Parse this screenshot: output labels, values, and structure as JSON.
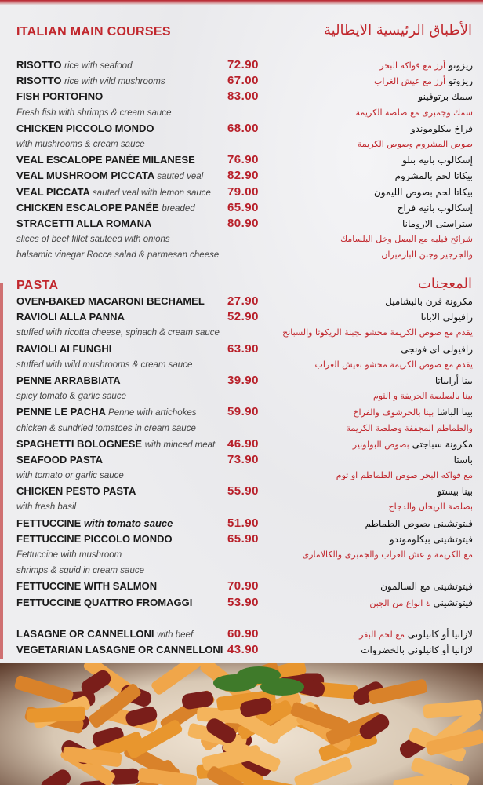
{
  "sections": [
    {
      "title_en": "ITALIAN MAIN COURSES",
      "title_ar": "الأطباق الرئيسية الايطالية",
      "lines": [
        {
          "en": "RISOTTO",
          "en_note": "rice with seafood",
          "price": "72.90",
          "ar": "ريزوتو",
          "ar_note": "أرز مع فواكه البحر"
        },
        {
          "en": "RISOTTO",
          "en_note": "rice with wild mushrooms",
          "price": "67.00",
          "ar": "ريزوتو",
          "ar_note": "أرز مع عيش الغراب"
        },
        {
          "en": "FISH PORTOFINO",
          "price": "83.00",
          "ar": "سمك برتوفينو"
        },
        {
          "desc_en": "Fresh fish with shrimps & cream sauce",
          "desc_ar": "سمك وجمبرى مع صلصة الكريمة"
        },
        {
          "en": "CHICKEN PICCOLO MONDO",
          "price": "68.00",
          "ar": "فراخ بيكلوموندو"
        },
        {
          "desc_en": "with mushrooms & cream sauce",
          "desc_ar": "صوص المشروم وصوص الكريمة"
        },
        {
          "en": "VEAL ESCALOPE PANÉE MILANESE",
          "price": "76.90",
          "ar": "إسكالوب بانيه بتلو"
        },
        {
          "en": "VEAL MUSHROOM PICCATA",
          "en_note": "sauted veal",
          "price": "82.90",
          "ar": "بيكاتا لحم بالمشروم"
        },
        {
          "en": "VEAL PICCATA",
          "en_note": "sauted veal with lemon sauce",
          "price": "79.00",
          "ar": "بيكاتا لحم بصوص الليمون"
        },
        {
          "en": "CHICKEN ESCALOPE PANÉE",
          "en_note": "breaded",
          "price": "65.90",
          "ar": "إسكالوب بانيه فراخ"
        },
        {
          "en": "STRACETTI ALLA ROMANA",
          "price": "80.90",
          "ar": "ستراستى الارومانا"
        },
        {
          "desc_en": "slices of beef fillet sauteed with onions",
          "desc_ar": "شرائح فيليه مع البصل وخل البلسامك"
        },
        {
          "desc_en": "balsamic vinegar Rocca salad & parmesan cheese",
          "desc_ar": "والجرجير وجبن البارميزان"
        }
      ]
    },
    {
      "title_en": "PASTA",
      "title_ar": "المعجنات",
      "lines": [
        {
          "en": "OVEN-BAKED MACARONI BECHAMEL",
          "price": "27.90",
          "ar": "مكرونة فرن بالبشاميل"
        },
        {
          "en": "RAVIOLI ALLA PANNA",
          "price": "52.90",
          "ar": "رافيولى الابانا"
        },
        {
          "desc_en": "stuffed with ricotta cheese, spinach & cream sauce",
          "desc_ar": "يقدم مع صوص الكريمة محشو بجبنة الريكوتا والسبانخ"
        },
        {
          "en": "RAVIOLI AI FUNGHI",
          "price": "63.90",
          "ar": "رافيولى اى فونجى"
        },
        {
          "desc_en": "stuffed with wild mushrooms & cream sauce",
          "desc_ar": "يقدم مع صوص الكريمة محشو بعيش الغراب"
        },
        {
          "en": "PENNE ARRABBIATA",
          "price": "39.90",
          "ar": "بينا أرابياتا"
        },
        {
          "desc_en": "spicy tomato & garlic sauce",
          "desc_ar": "بينا بالصلصة الحريفة و الثوم"
        },
        {
          "en": "PENNE LE PACHA",
          "en_note": "Penne with artichokes",
          "price": "59.90",
          "ar": "بينا الباشا",
          "ar_note": "بينا بالخرشوف والفراخ"
        },
        {
          "desc_en": "chicken & sundried tomatoes in cream sauce",
          "desc_ar": "والطماطم المجففة وصلصة الكريمة"
        },
        {
          "en": "SPAGHETTI BOLOGNESE",
          "en_note": "with minced meat",
          "price": "46.90",
          "ar": "مكرونة سباجتى",
          "ar_note": "بصوص البولونيز"
        },
        {
          "en": "SEAFOOD PASTA",
          "price": "73.90",
          "ar": "باستا"
        },
        {
          "desc_en": "with tomato or garlic sauce",
          "desc_ar": "مع فواكه البحر صوص الطماطم او ثوم"
        },
        {
          "en": "CHICKEN PESTO PASTA",
          "price": "55.90",
          "ar": "بينا بيستو"
        },
        {
          "desc_en": "with fresh basil",
          "desc_ar": "بصلصة الريحان والدجاج"
        },
        {
          "en": "FETTUCCINE",
          "en_note_bold": "with tomato sauce",
          "price": "51.90",
          "ar": "فيتوتشينى بصوص الطماطم"
        },
        {
          "en": "FETTUCCINE PICCOLO MONDO",
          "price": "65.90",
          "ar": "فيتوتشينى بيكلوموندو"
        },
        {
          "desc_en": "Fettuccine with mushroom",
          "desc_ar": "مع الكريمة و عش الغراب والجمبرى والكالامارى"
        },
        {
          "desc_en": " shrimps & squid in cream sauce"
        },
        {
          "en": "FETTUCCINE WITH SALMON",
          "price": "70.90",
          "ar": "فيتوتشينى مع السالمون"
        },
        {
          "en": "FETTUCCINE QUATTRO FROMAGGI",
          "price": "53.90",
          "ar": "فيتوتشينى",
          "ar_note": "٤ انواع من الجبن"
        }
      ]
    },
    {
      "lines": [
        {
          "en": "LASAGNE OR CANNELLONI",
          "en_note": "with beef",
          "price": "60.90",
          "ar": "لازانيا أو كانيلونى",
          "ar_note": "مع لحم البقر"
        },
        {
          "en": "VEGETARIAN LASAGNE OR CANNELLONI",
          "price": "43.90",
          "ar": "لازانيا أو كانيلونى بالخضروات"
        }
      ]
    }
  ],
  "colors": {
    "accent": "#c1272d",
    "price": "#b8202a",
    "background": "#ececef"
  },
  "photo": {
    "icon": "penne-pasta-photo"
  }
}
